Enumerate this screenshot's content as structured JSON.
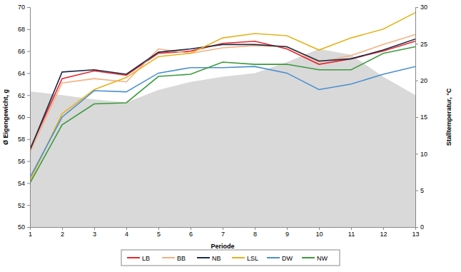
{
  "chart_data": {
    "type": "line",
    "x_label": "Periode",
    "y_label": "Ø Eigengewicht, g",
    "y2_label": "Stalltemperatur, °C",
    "x": [
      1,
      2,
      3,
      4,
      5,
      6,
      7,
      8,
      9,
      10,
      11,
      12,
      13
    ],
    "xlim": [
      1,
      13
    ],
    "xticks": [
      1,
      2,
      3,
      4,
      5,
      6,
      7,
      8,
      9,
      10,
      11,
      12,
      13
    ],
    "ylim": [
      50,
      70
    ],
    "yticks": [
      50,
      52,
      54,
      56,
      58,
      60,
      62,
      64,
      66,
      68,
      70
    ],
    "y2lim": [
      0,
      30
    ],
    "y2ticks": [
      0,
      5,
      10,
      15,
      20,
      25,
      30
    ],
    "grid": false,
    "legend": "bottom",
    "series": [
      {
        "type": "area",
        "axis": "y2",
        "color": "#d9d9d9",
        "values": [
          18.5,
          18.0,
          17.4,
          17.0,
          18.7,
          19.8,
          20.5,
          21.0,
          22.5,
          24.3,
          23.5,
          20.5,
          18.0
        ]
      },
      {
        "name": "LB",
        "color": "#e8272e",
        "values": [
          57.1,
          63.5,
          64.2,
          63.8,
          65.8,
          66.0,
          66.7,
          66.9,
          66.2,
          64.8,
          65.3,
          66.0,
          66.9
        ]
      },
      {
        "name": "BB",
        "color": "#f4b183",
        "values": [
          56.8,
          63.1,
          63.5,
          63.2,
          66.2,
          65.8,
          66.3,
          66.5,
          66.4,
          65.0,
          65.6,
          66.6,
          67.5
        ]
      },
      {
        "name": "NB",
        "color": "#1f2a44",
        "values": [
          57.0,
          64.1,
          64.3,
          63.9,
          65.9,
          66.2,
          66.6,
          66.6,
          66.4,
          65.1,
          65.3,
          66.1,
          67.1
        ]
      },
      {
        "name": "LSL",
        "color": "#e6b31e",
        "values": [
          54.2,
          60.3,
          62.5,
          63.6,
          65.5,
          65.8,
          67.2,
          67.6,
          67.4,
          66.1,
          67.2,
          68.0,
          69.5
        ]
      },
      {
        "name": "DW",
        "color": "#4a8fd0",
        "values": [
          54.5,
          60.0,
          62.4,
          62.3,
          64.0,
          64.5,
          64.5,
          64.6,
          64.0,
          62.5,
          63.0,
          63.9,
          64.6
        ]
      },
      {
        "name": "NW",
        "color": "#3c9a3c",
        "values": [
          54.0,
          59.3,
          61.2,
          61.3,
          63.7,
          63.9,
          65.0,
          64.8,
          64.8,
          64.3,
          64.3,
          65.8,
          66.4
        ]
      }
    ]
  }
}
